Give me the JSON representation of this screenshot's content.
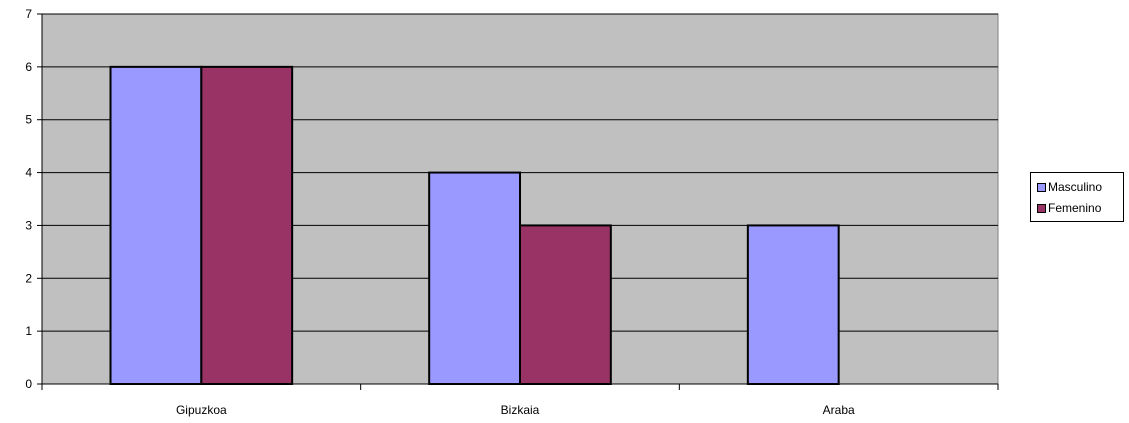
{
  "chart_data": {
    "type": "bar",
    "categories": [
      "Gipuzkoa",
      "Bizkaia",
      "Araba"
    ],
    "series": [
      {
        "name": "Masculino",
        "values": [
          6,
          4,
          3
        ],
        "color": "#9999ff"
      },
      {
        "name": "Femenino",
        "values": [
          6,
          3,
          0
        ],
        "color": "#993366"
      }
    ],
    "ylim": [
      0,
      7
    ],
    "yticks": [
      0,
      1,
      2,
      3,
      4,
      5,
      6,
      7
    ],
    "grid": true,
    "plot_background": "#c0c0c0",
    "legend_position": "right",
    "title": "",
    "xlabel": "",
    "ylabel": ""
  }
}
